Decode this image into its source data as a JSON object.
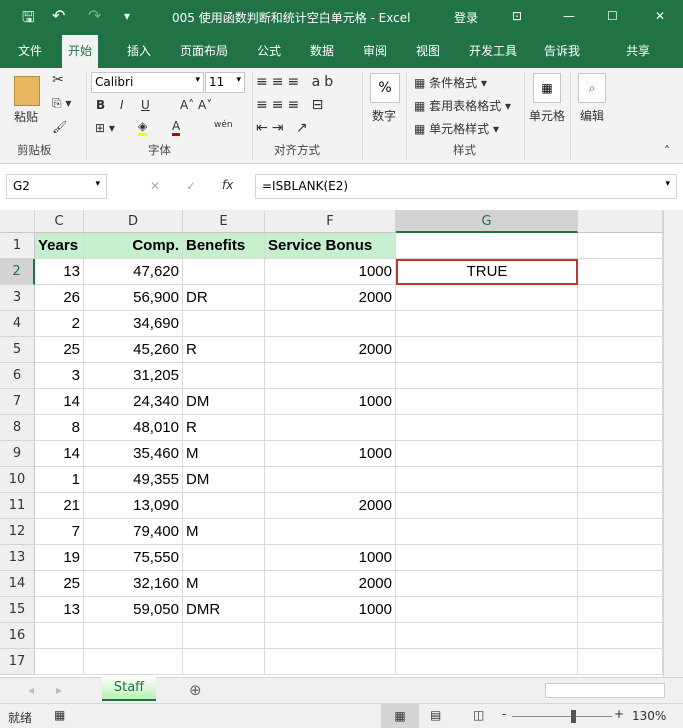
{
  "title_bar": {
    "title": "005 使用函数判断和统计空白单元格  -  Excel",
    "login": "登录",
    "icons": [
      "save-icon",
      "undo-icon",
      "redo-icon",
      "customize-icon",
      "ribbon-display-icon",
      "minimize-icon",
      "maximize-icon",
      "close-icon"
    ]
  },
  "tabs": [
    "文件",
    "开始",
    "插入",
    "页面布局",
    "公式",
    "数据",
    "审阅",
    "视图",
    "开发工具",
    "告诉我",
    "共享"
  ],
  "active_tab": "开始",
  "ribbon": {
    "clipboard": {
      "paste": "粘贴",
      "group": "剪贴板"
    },
    "font": {
      "name": "Calibri",
      "size": "11",
      "bold": "B",
      "italic": "I",
      "underline": "U",
      "group": "字体",
      "phonetic": "wén"
    },
    "alignment": {
      "group": "对齐方式"
    },
    "number": {
      "label": "数字",
      "icon": "%"
    },
    "styles": {
      "conditional": "条件格式",
      "table": "套用表格格式",
      "cell": "单元格样式",
      "group": "样式"
    },
    "cells": {
      "label": "单元格"
    },
    "editing": {
      "label": "编辑"
    }
  },
  "formula_bar": {
    "name_box": "G2",
    "fx": "fx",
    "formula": "=ISBLANK(E2)"
  },
  "columns": [
    "C",
    "D",
    "E",
    "F",
    "G"
  ],
  "selected_cell": "G2",
  "rows": [
    [
      "Years",
      "Comp.",
      "Benefits",
      "Service Bonus",
      ""
    ],
    [
      "13",
      "47,620",
      "",
      "1000",
      "TRUE"
    ],
    [
      "26",
      "56,900",
      "DR",
      "2000",
      ""
    ],
    [
      "2",
      "34,690",
      "",
      "",
      ""
    ],
    [
      "25",
      "45,260",
      "R",
      "2000",
      ""
    ],
    [
      "3",
      "31,205",
      "",
      "",
      ""
    ],
    [
      "14",
      "24,340",
      "DM",
      "1000",
      ""
    ],
    [
      "8",
      "48,010",
      "R",
      "",
      ""
    ],
    [
      "14",
      "35,460",
      "M",
      "1000",
      ""
    ],
    [
      "1",
      "49,355",
      "DM",
      "",
      ""
    ],
    [
      "21",
      "13,090",
      "",
      "2000",
      ""
    ],
    [
      "7",
      "79,400",
      "M",
      "",
      ""
    ],
    [
      "19",
      "75,550",
      "",
      "1000",
      ""
    ],
    [
      "25",
      "32,160",
      "M",
      "2000",
      ""
    ],
    [
      "13",
      "59,050",
      "DMR",
      "1000",
      ""
    ],
    [
      "",
      "",
      "",
      "",
      ""
    ],
    [
      "",
      "",
      "",
      "",
      ""
    ]
  ],
  "sheet_tabs": [
    "Staff"
  ],
  "status": {
    "ready": "就绪",
    "zoom": "130%",
    "zoom_percent": 130
  },
  "colors": {
    "accent": "#217346",
    "header_fill": "#c6efce",
    "selection": "#c0392b"
  }
}
